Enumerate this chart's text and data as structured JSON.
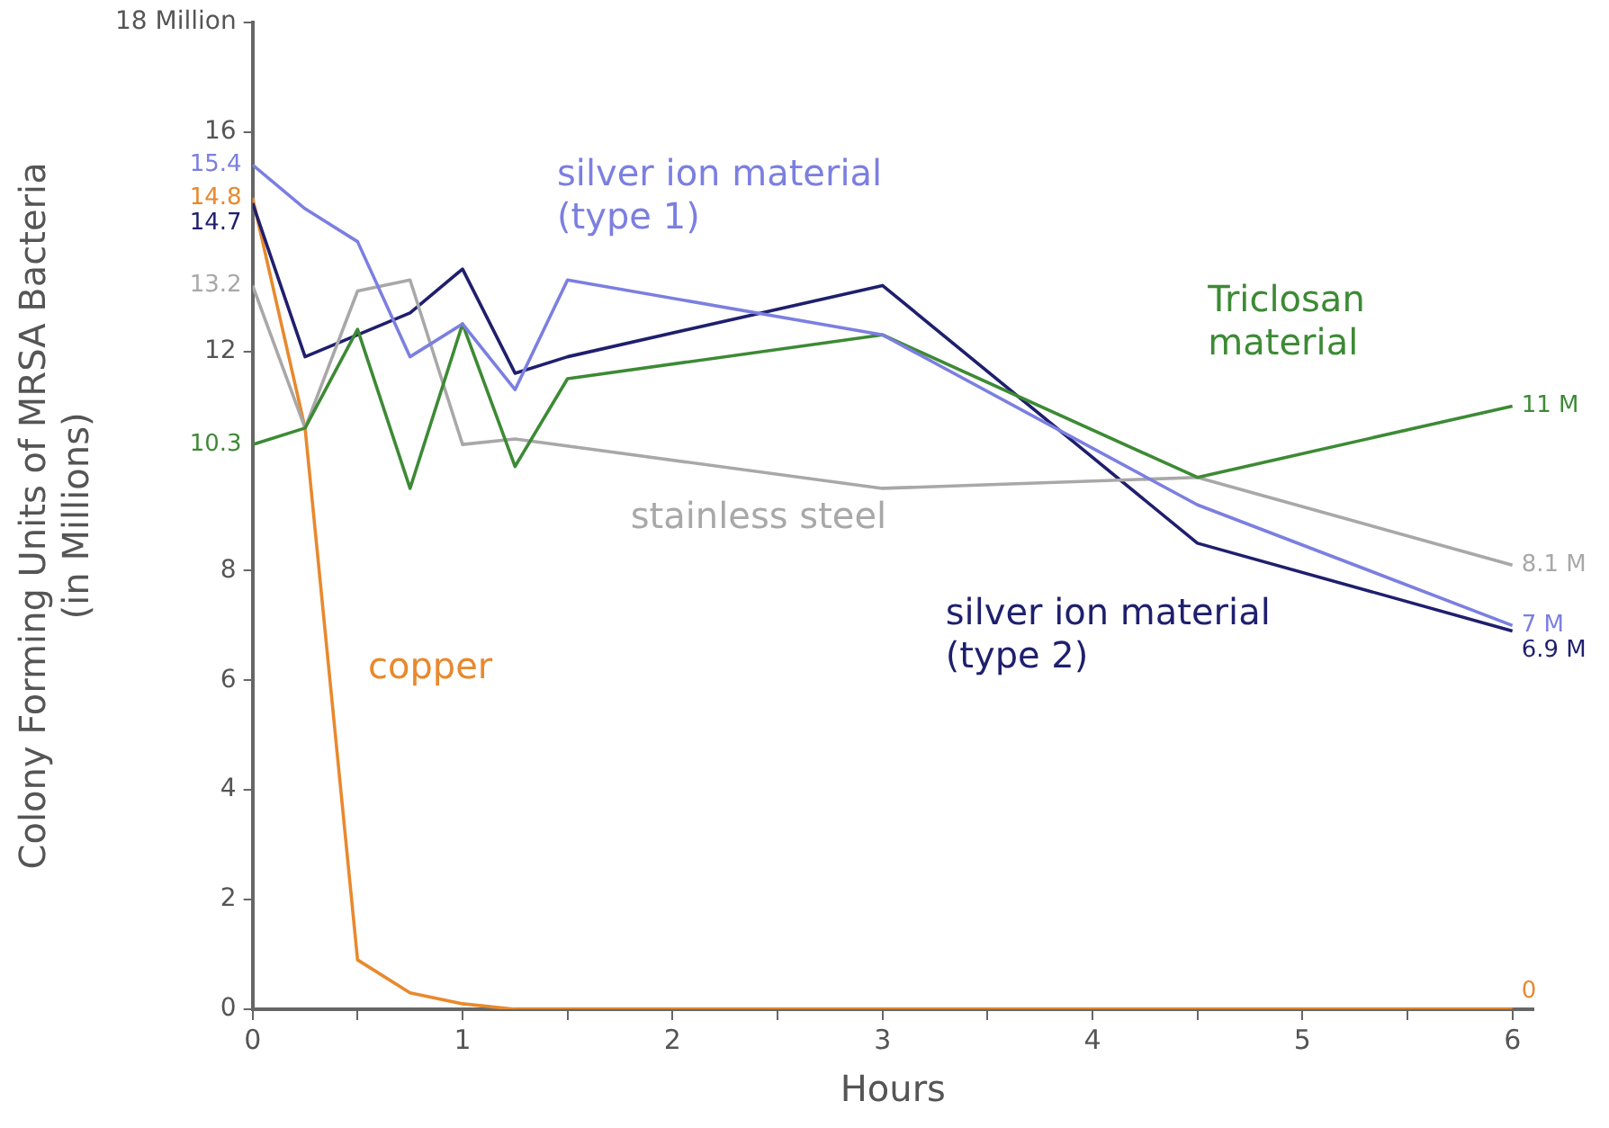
{
  "chart_data": {
    "type": "line",
    "xlabel": "Hours",
    "ylabel": "Colony Forming Units of MRSA Bacteria (in Millions)",
    "xlim": [
      0,
      6.1
    ],
    "xticks": [
      0,
      {
        "value": 0.5,
        "label": null
      },
      1,
      {
        "value": 1.5,
        "label": null
      },
      2,
      {
        "value": 2.5,
        "label": null
      },
      3,
      {
        "value": 3.5,
        "label": null
      },
      4,
      {
        "value": 4.5,
        "label": null
      },
      5,
      {
        "value": 5.5,
        "label": null
      },
      6
    ],
    "ylim": [
      0,
      18
    ],
    "yticks": [
      0,
      2,
      4,
      6,
      8,
      12,
      16,
      {
        "value": 18,
        "label": "18 Million"
      }
    ],
    "grid": false,
    "legend": false,
    "marker": "none",
    "line_style": "solid",
    "series": [
      {
        "name": "silver ion material (type 1)",
        "color": "#7b7fe0",
        "x": [
          0,
          0.25,
          0.5,
          0.75,
          1,
          1.25,
          1.5,
          3,
          4.5,
          6
        ],
        "values": [
          15.4,
          14.6,
          14.0,
          11.9,
          12.5,
          11.3,
          13.3,
          12.3,
          9.2,
          7.0
        ],
        "value_labels": [
          "15.4",
          null,
          null,
          null,
          null,
          null,
          null,
          null,
          null,
          "7 M"
        ]
      },
      {
        "name": "Triclosan material",
        "color": "#3d8a35",
        "x": [
          0,
          0.25,
          0.5,
          0.75,
          1,
          1.25,
          1.5,
          3,
          4.5,
          6
        ],
        "values": [
          10.3,
          10.6,
          12.4,
          9.5,
          12.5,
          9.9,
          11.5,
          12.3,
          9.7,
          11
        ],
        "value_labels": [
          "10.3",
          null,
          null,
          null,
          null,
          null,
          null,
          null,
          null,
          "11 M"
        ]
      },
      {
        "name": "stainless steel",
        "color": "#a8a8a8",
        "x": [
          0,
          0.25,
          0.5,
          0.75,
          1,
          1.25,
          3,
          4.5,
          6
        ],
        "values": [
          13.2,
          10.6,
          13.1,
          13.3,
          10.3,
          10.4,
          9.5,
          9.7,
          8.1
        ],
        "value_labels": [
          "13.2",
          null,
          null,
          null,
          null,
          null,
          null,
          null,
          "8.1 M"
        ]
      },
      {
        "name": "silver ion material (type 2)",
        "color": "#1f1f6e",
        "x": [
          0,
          0.25,
          0.75,
          1,
          1.25,
          1.5,
          3,
          4.5,
          6
        ],
        "values": [
          14.7,
          11.9,
          12.7,
          13.5,
          11.6,
          11.9,
          13.2,
          8.5,
          6.9
        ],
        "value_labels": [
          "14.7",
          null,
          null,
          null,
          null,
          null,
          null,
          null,
          "6.9 M"
        ]
      },
      {
        "name": "copper",
        "color": "#e8892e",
        "x": [
          0,
          0.25,
          0.5,
          0.75,
          1,
          1.25,
          6
        ],
        "values": [
          14.8,
          10.6,
          0.9,
          0.3,
          0.1,
          0,
          0
        ],
        "value_labels": [
          "14.8",
          null,
          null,
          null,
          null,
          null,
          "0"
        ]
      }
    ]
  }
}
